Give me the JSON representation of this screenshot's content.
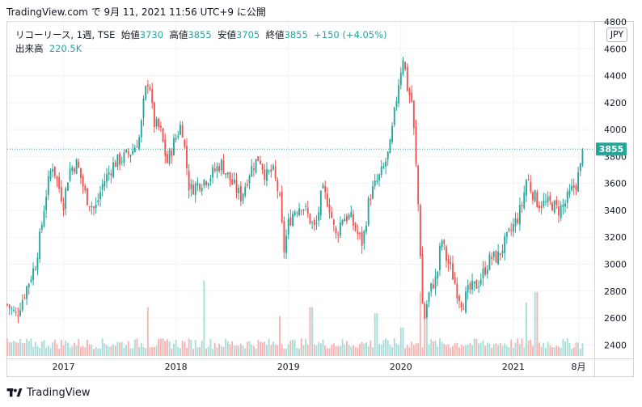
{
  "header": {
    "caption": "TradingView.com で 9月 11, 2021 11:56 UTC+9 に公開"
  },
  "legend": {
    "symbol": "リコーリース, 1週, TSE",
    "open_label": "始値",
    "open": "3730",
    "high_label": "高値",
    "high": "3855",
    "low_label": "安値",
    "low": "3705",
    "close_label": "終値",
    "close": "3855",
    "change": "+150 (+4.05%)",
    "volume_label": "出来高",
    "volume": "220.5K"
  },
  "currency_button": "JPY",
  "footer": {
    "brand": "TradingView"
  },
  "colors": {
    "up": "#26a69a",
    "down": "#ef5350",
    "vol_up": "#a7dcd7",
    "vol_down": "#f6b3b1",
    "grid": "#f0f3fa"
  },
  "chart_data": {
    "type": "candlestick",
    "interval": "1週",
    "ylim": [
      2300,
      4800
    ],
    "y_ticks": [
      2400,
      2600,
      2800,
      3000,
      3200,
      3400,
      3600,
      3800,
      4000,
      4200,
      4400,
      4600,
      4800
    ],
    "x_ticks": [
      {
        "label": "2017",
        "t": 2017.0
      },
      {
        "label": "2018",
        "t": 2018.0
      },
      {
        "label": "2019",
        "t": 2019.0
      },
      {
        "label": "2020",
        "t": 2020.0
      },
      {
        "label": "2021",
        "t": 2021.0
      },
      {
        "label": "8月",
        "t": 2021.58
      }
    ],
    "x_range": [
      2016.5,
      2021.72
    ],
    "last_price": 3855,
    "last_price_label": "3855",
    "close_path": [
      [
        2016.5,
        2700
      ],
      [
        2016.58,
        2620
      ],
      [
        2016.66,
        2800
      ],
      [
        2016.75,
        3000
      ],
      [
        2016.8,
        3250
      ],
      [
        2016.84,
        3500
      ],
      [
        2016.9,
        3750
      ],
      [
        2016.95,
        3600
      ],
      [
        2017.0,
        3450
      ],
      [
        2017.05,
        3700
      ],
      [
        2017.12,
        3750
      ],
      [
        2017.2,
        3500
      ],
      [
        2017.28,
        3400
      ],
      [
        2017.35,
        3600
      ],
      [
        2017.45,
        3750
      ],
      [
        2017.55,
        3800
      ],
      [
        2017.62,
        3850
      ],
      [
        2017.68,
        3950
      ],
      [
        2017.72,
        4250
      ],
      [
        2017.76,
        4400
      ],
      [
        2017.8,
        4050
      ],
      [
        2017.86,
        4000
      ],
      [
        2017.92,
        3750
      ],
      [
        2017.98,
        3900
      ],
      [
        2018.05,
        4050
      ],
      [
        2018.12,
        3550
      ],
      [
        2018.2,
        3600
      ],
      [
        2018.3,
        3650
      ],
      [
        2018.4,
        3750
      ],
      [
        2018.5,
        3600
      ],
      [
        2018.58,
        3500
      ],
      [
        2018.66,
        3700
      ],
      [
        2018.74,
        3800
      ],
      [
        2018.8,
        3650
      ],
      [
        2018.86,
        3700
      ],
      [
        2018.92,
        3500
      ],
      [
        2018.96,
        3100
      ],
      [
        2019.0,
        3300
      ],
      [
        2019.05,
        3400
      ],
      [
        2019.12,
        3450
      ],
      [
        2019.18,
        3350
      ],
      [
        2019.24,
        3250
      ],
      [
        2019.3,
        3550
      ],
      [
        2019.36,
        3450
      ],
      [
        2019.42,
        3200
      ],
      [
        2019.48,
        3350
      ],
      [
        2019.55,
        3350
      ],
      [
        2019.6,
        3250
      ],
      [
        2019.66,
        3150
      ],
      [
        2019.72,
        3500
      ],
      [
        2019.78,
        3600
      ],
      [
        2019.84,
        3700
      ],
      [
        2019.9,
        3850
      ],
      [
        2019.94,
        4100
      ],
      [
        2019.98,
        4350
      ],
      [
        2020.02,
        4550
      ],
      [
        2020.06,
        4300
      ],
      [
        2020.1,
        4200
      ],
      [
        2020.14,
        3650
      ],
      [
        2020.16,
        3350
      ],
      [
        2020.18,
        2950
      ],
      [
        2020.2,
        2550
      ],
      [
        2020.24,
        2750
      ],
      [
        2020.28,
        2850
      ],
      [
        2020.32,
        2900
      ],
      [
        2020.36,
        3200
      ],
      [
        2020.4,
        3050
      ],
      [
        2020.45,
        2950
      ],
      [
        2020.5,
        2800
      ],
      [
        2020.55,
        2700
      ],
      [
        2020.6,
        2800
      ],
      [
        2020.68,
        2850
      ],
      [
        2020.74,
        2950
      ],
      [
        2020.8,
        3050
      ],
      [
        2020.86,
        3050
      ],
      [
        2020.92,
        3150
      ],
      [
        2020.98,
        3250
      ],
      [
        2021.04,
        3350
      ],
      [
        2021.08,
        3450
      ],
      [
        2021.12,
        3650
      ],
      [
        2021.16,
        3550
      ],
      [
        2021.22,
        3450
      ],
      [
        2021.28,
        3450
      ],
      [
        2021.34,
        3450
      ],
      [
        2021.4,
        3400
      ],
      [
        2021.46,
        3450
      ],
      [
        2021.52,
        3550
      ],
      [
        2021.56,
        3600
      ],
      [
        2021.6,
        3730
      ],
      [
        2021.62,
        3855
      ]
    ],
    "volume_peaks": [
      [
        2017.75,
        0.55
      ],
      [
        2018.25,
        0.85
      ],
      [
        2018.92,
        0.45
      ],
      [
        2019.2,
        0.55
      ],
      [
        2019.78,
        0.48
      ],
      [
        2020.01,
        0.32
      ],
      [
        2020.18,
        0.72
      ],
      [
        2020.22,
        0.45
      ],
      [
        2021.12,
        0.6
      ],
      [
        2021.2,
        0.72
      ]
    ]
  }
}
